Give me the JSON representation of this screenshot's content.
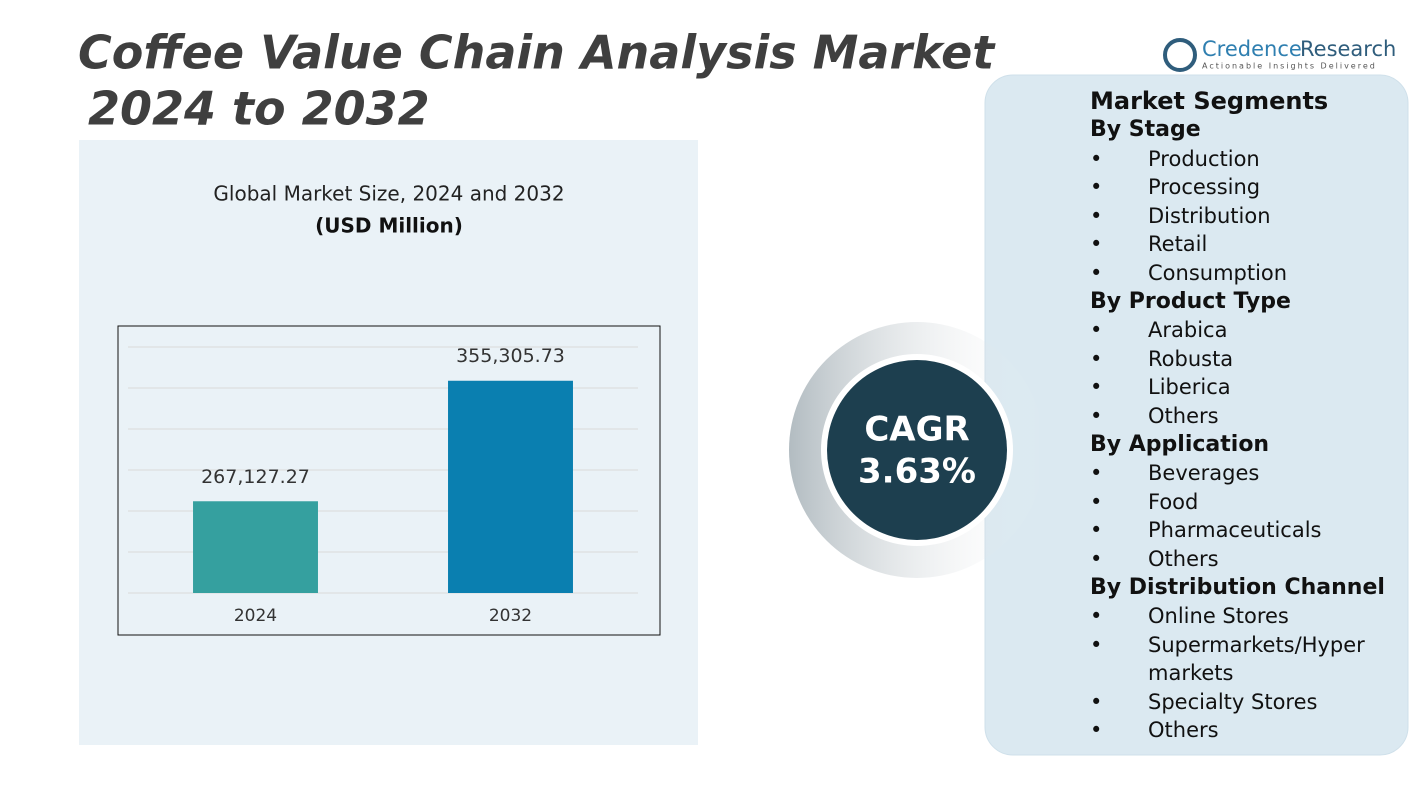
{
  "header": {
    "title_line1": "Coffee Value Chain Analysis Market",
    "title_line2": "2024 to 2032"
  },
  "logo": {
    "name_part1": "Credence",
    "name_part2": "Research",
    "tagline": "Actionable Insights Delivered"
  },
  "cagr": {
    "label": "CAGR",
    "value": "3.63%"
  },
  "segments": {
    "title": "Market Segments",
    "groups": [
      {
        "heading": "By Stage",
        "items": [
          "Production",
          "Processing",
          "Distribution",
          "Retail",
          "Consumption"
        ]
      },
      {
        "heading": "By Product Type",
        "items": [
          "Arabica",
          "Robusta",
          "Liberica",
          "Others"
        ]
      },
      {
        "heading": "By Application",
        "items": [
          "Beverages",
          "Food",
          "Pharmaceuticals",
          "Others"
        ]
      },
      {
        "heading": "By Distribution Channel",
        "items": [
          "Online Stores",
          "Supermarkets/Hyper markets",
          "Specialty Stores",
          "Others"
        ]
      }
    ]
  },
  "chart_data": {
    "type": "bar",
    "title": "Global Market Size, 2024 and 2032",
    "subtitle": "(USD Million)",
    "categories": [
      "2024",
      "2032"
    ],
    "values": [
      267127.27,
      355305.73
    ],
    "value_labels": [
      "267,127.27",
      "355,305.73"
    ],
    "colors": [
      "#35a09f",
      "#0a7fb0"
    ],
    "ylim": [
      200000,
      380000
    ],
    "yticks": [
      200000,
      230000,
      260000,
      290000,
      320000,
      350000,
      380000
    ],
    "grid": true
  }
}
